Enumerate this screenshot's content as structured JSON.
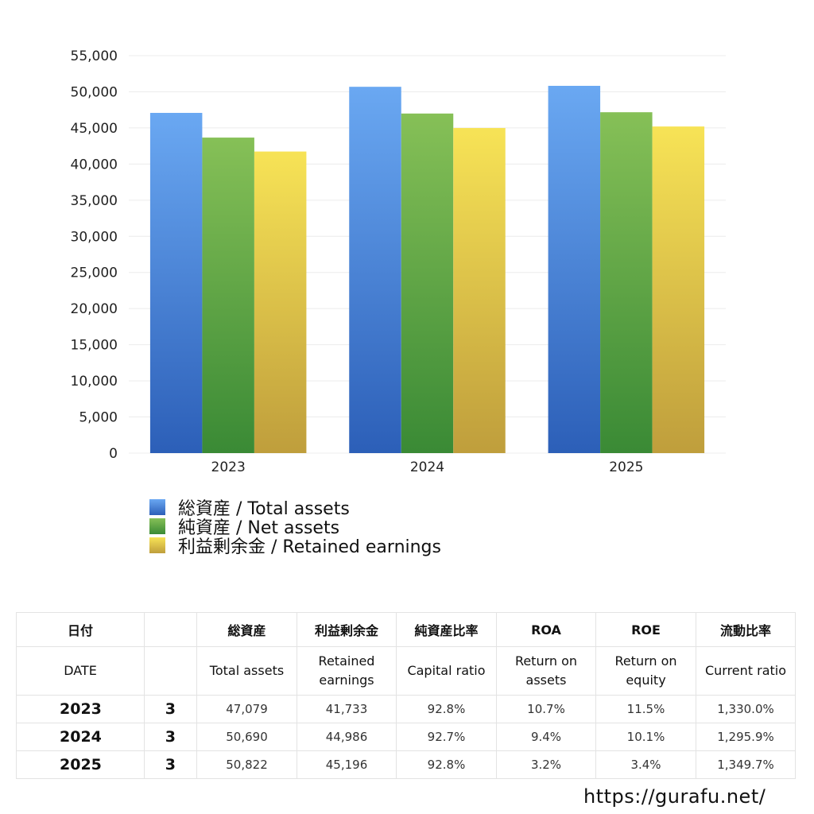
{
  "chart_data": {
    "type": "bar",
    "categories": [
      "2023",
      "2024",
      "2025"
    ],
    "series": [
      {
        "name": "総資産 / Total assets",
        "values": [
          47079,
          50690,
          50822
        ],
        "color": "#4f8de3"
      },
      {
        "name": "純資産 / Net assets",
        "values": [
          43660,
          46990,
          47170
        ],
        "color": "#5ca84a"
      },
      {
        "name": "利益剰余金 / Retained earnings",
        "values": [
          41733,
          44986,
          45196
        ],
        "color": "#e8cf4a"
      }
    ],
    "ylim": [
      0,
      55000
    ],
    "yticks": [
      0,
      5000,
      10000,
      15000,
      20000,
      25000,
      30000,
      35000,
      40000,
      45000,
      50000,
      55000
    ],
    "grid": true,
    "legend_position": "bottom-left"
  },
  "table": {
    "header_jp": [
      "日付",
      "",
      "総資産",
      "利益剰余金",
      "純資産比率",
      "ROA",
      "ROE",
      "流動比率"
    ],
    "header_en": [
      "DATE",
      "",
      "Total assets",
      "Retained earnings",
      "Capital ratio",
      "Return on assets",
      "Return on equity",
      "Current ratio"
    ],
    "rows": [
      {
        "year": "2023",
        "month": "3",
        "total_assets": "47,079",
        "retained_earnings": "41,733",
        "capital_ratio": "92.8%",
        "roa": "10.7%",
        "roe": "11.5%",
        "current_ratio": "1,330.0%"
      },
      {
        "year": "2024",
        "month": "3",
        "total_assets": "50,690",
        "retained_earnings": "44,986",
        "capital_ratio": "92.7%",
        "roa": "9.4%",
        "roe": "10.1%",
        "current_ratio": "1,295.9%"
      },
      {
        "year": "2025",
        "month": "3",
        "total_assets": "50,822",
        "retained_earnings": "45,196",
        "capital_ratio": "92.8%",
        "roa": "3.2%",
        "roe": "3.4%",
        "current_ratio": "1,349.7%"
      }
    ]
  },
  "footer": {
    "url": "https://gurafu.net/"
  }
}
